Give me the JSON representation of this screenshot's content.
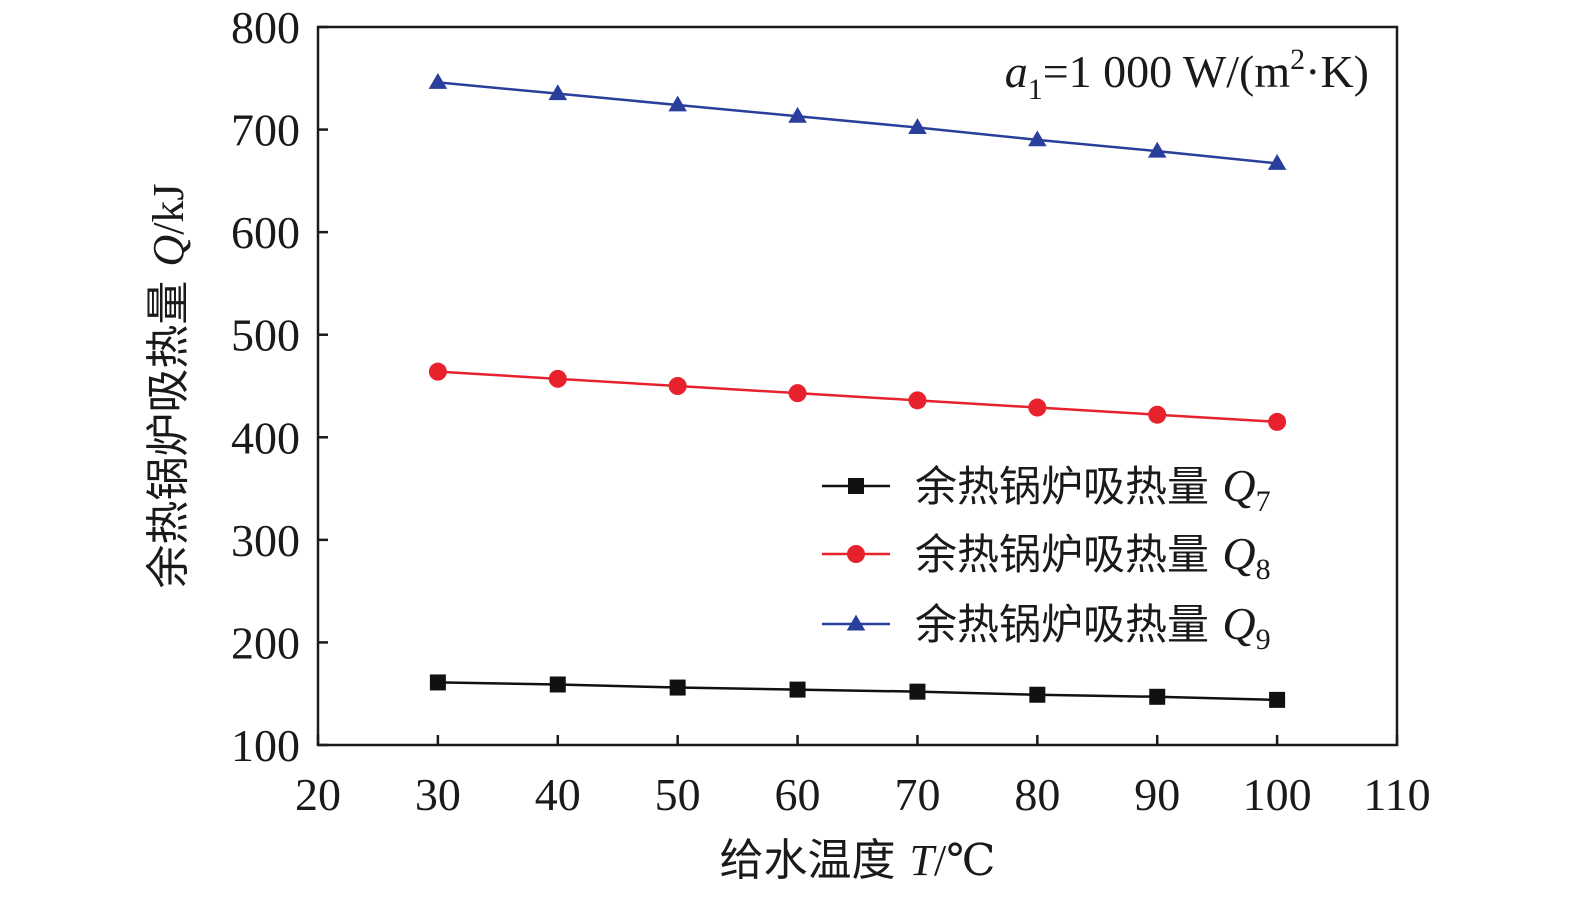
{
  "chart_data": {
    "type": "line",
    "xlabel": {
      "text": "给水温度 ",
      "var": "T",
      "unit": "/℃"
    },
    "ylabel": {
      "text": "余热锅炉吸热量 ",
      "var": "Q",
      "unit": "/kJ"
    },
    "xlim": [
      20,
      110
    ],
    "ylim": [
      100,
      800
    ],
    "xticks": [
      20,
      30,
      40,
      50,
      60,
      70,
      80,
      90,
      100,
      110
    ],
    "yticks": [
      100,
      200,
      300,
      400,
      500,
      600,
      700,
      800
    ],
    "annotation": {
      "var": "a",
      "sub": "1",
      "text": "=1 000 W/(m",
      "sup": "2",
      "tail": "·K)"
    },
    "legend_position": "right-middle",
    "x": [
      30,
      40,
      50,
      60,
      70,
      80,
      90,
      100
    ],
    "series": [
      {
        "name": "余热锅炉吸热量 ",
        "var": "Q",
        "sub": "7",
        "color": "#111111",
        "marker": "square",
        "values": [
          161,
          159,
          156,
          154,
          152,
          149,
          147,
          144
        ]
      },
      {
        "name": "余热锅炉吸热量 ",
        "var": "Q",
        "sub": "8",
        "color": "#e8222c",
        "marker": "circle",
        "values": [
          464,
          457,
          450,
          443,
          436,
          429,
          422,
          415
        ]
      },
      {
        "name": "余热锅炉吸热量 ",
        "var": "Q",
        "sub": "9",
        "color": "#2a3f9c",
        "marker": "triangle",
        "values": [
          746,
          735,
          724,
          713,
          702,
          690,
          679,
          667
        ]
      }
    ]
  }
}
